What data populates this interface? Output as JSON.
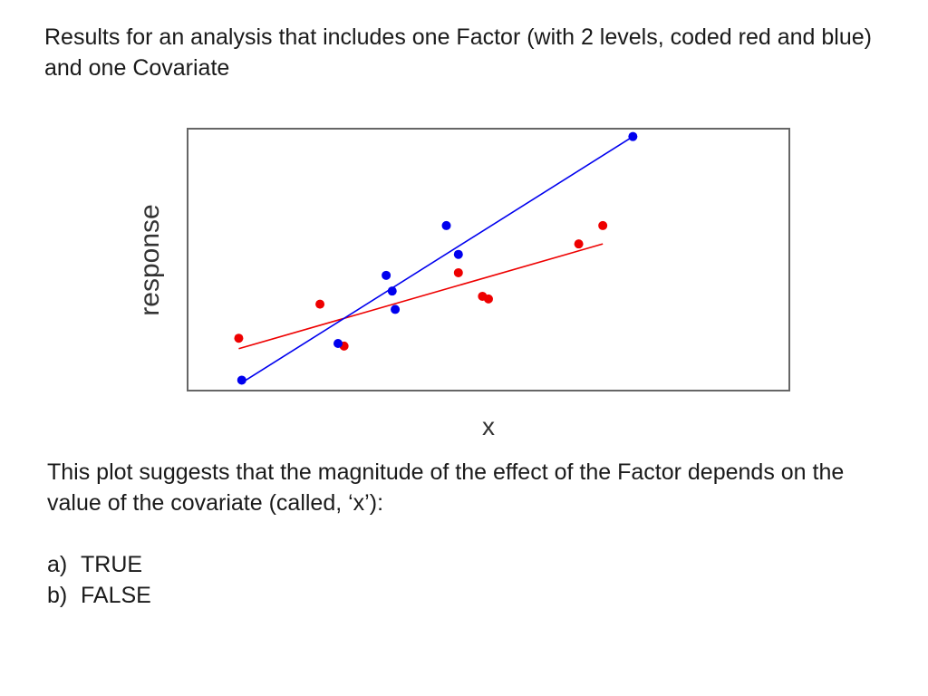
{
  "slide": {
    "intro": "Results for an analysis that includes one Factor (with 2 levels, coded red and blue) and one Covariate",
    "question": "This plot suggests that the magnitude of the effect of the Factor depends on the value of the covariate (called, ‘x’):",
    "options": [
      {
        "letter": "a)",
        "text": "TRUE"
      },
      {
        "letter": "b)",
        "text": "FALSE"
      }
    ]
  },
  "chart_data": {
    "type": "scatter",
    "title": "",
    "xlabel": "x",
    "ylabel": "response",
    "xlim": [
      0,
      100
    ],
    "ylim": [
      0,
      100
    ],
    "grid": false,
    "legend": "none",
    "series": [
      {
        "color": "#0000ee",
        "points": [
          {
            "x": 9,
            "y": 4
          },
          {
            "x": 25,
            "y": 18
          },
          {
            "x": 33,
            "y": 44
          },
          {
            "x": 34,
            "y": 38
          },
          {
            "x": 34.5,
            "y": 31
          },
          {
            "x": 43,
            "y": 63
          },
          {
            "x": 45,
            "y": 52
          },
          {
            "x": 74,
            "y": 97
          }
        ],
        "fit": {
          "x": [
            9,
            74
          ],
          "y": [
            3,
            97
          ]
        }
      },
      {
        "color": "#ee0000",
        "points": [
          {
            "x": 8.5,
            "y": 20
          },
          {
            "x": 22,
            "y": 33
          },
          {
            "x": 26,
            "y": 17
          },
          {
            "x": 45,
            "y": 45
          },
          {
            "x": 49,
            "y": 36
          },
          {
            "x": 50,
            "y": 35
          },
          {
            "x": 65,
            "y": 56
          },
          {
            "x": 69,
            "y": 63
          }
        ],
        "fit": {
          "x": [
            8.5,
            69
          ],
          "y": [
            16,
            56
          ]
        }
      }
    ]
  }
}
